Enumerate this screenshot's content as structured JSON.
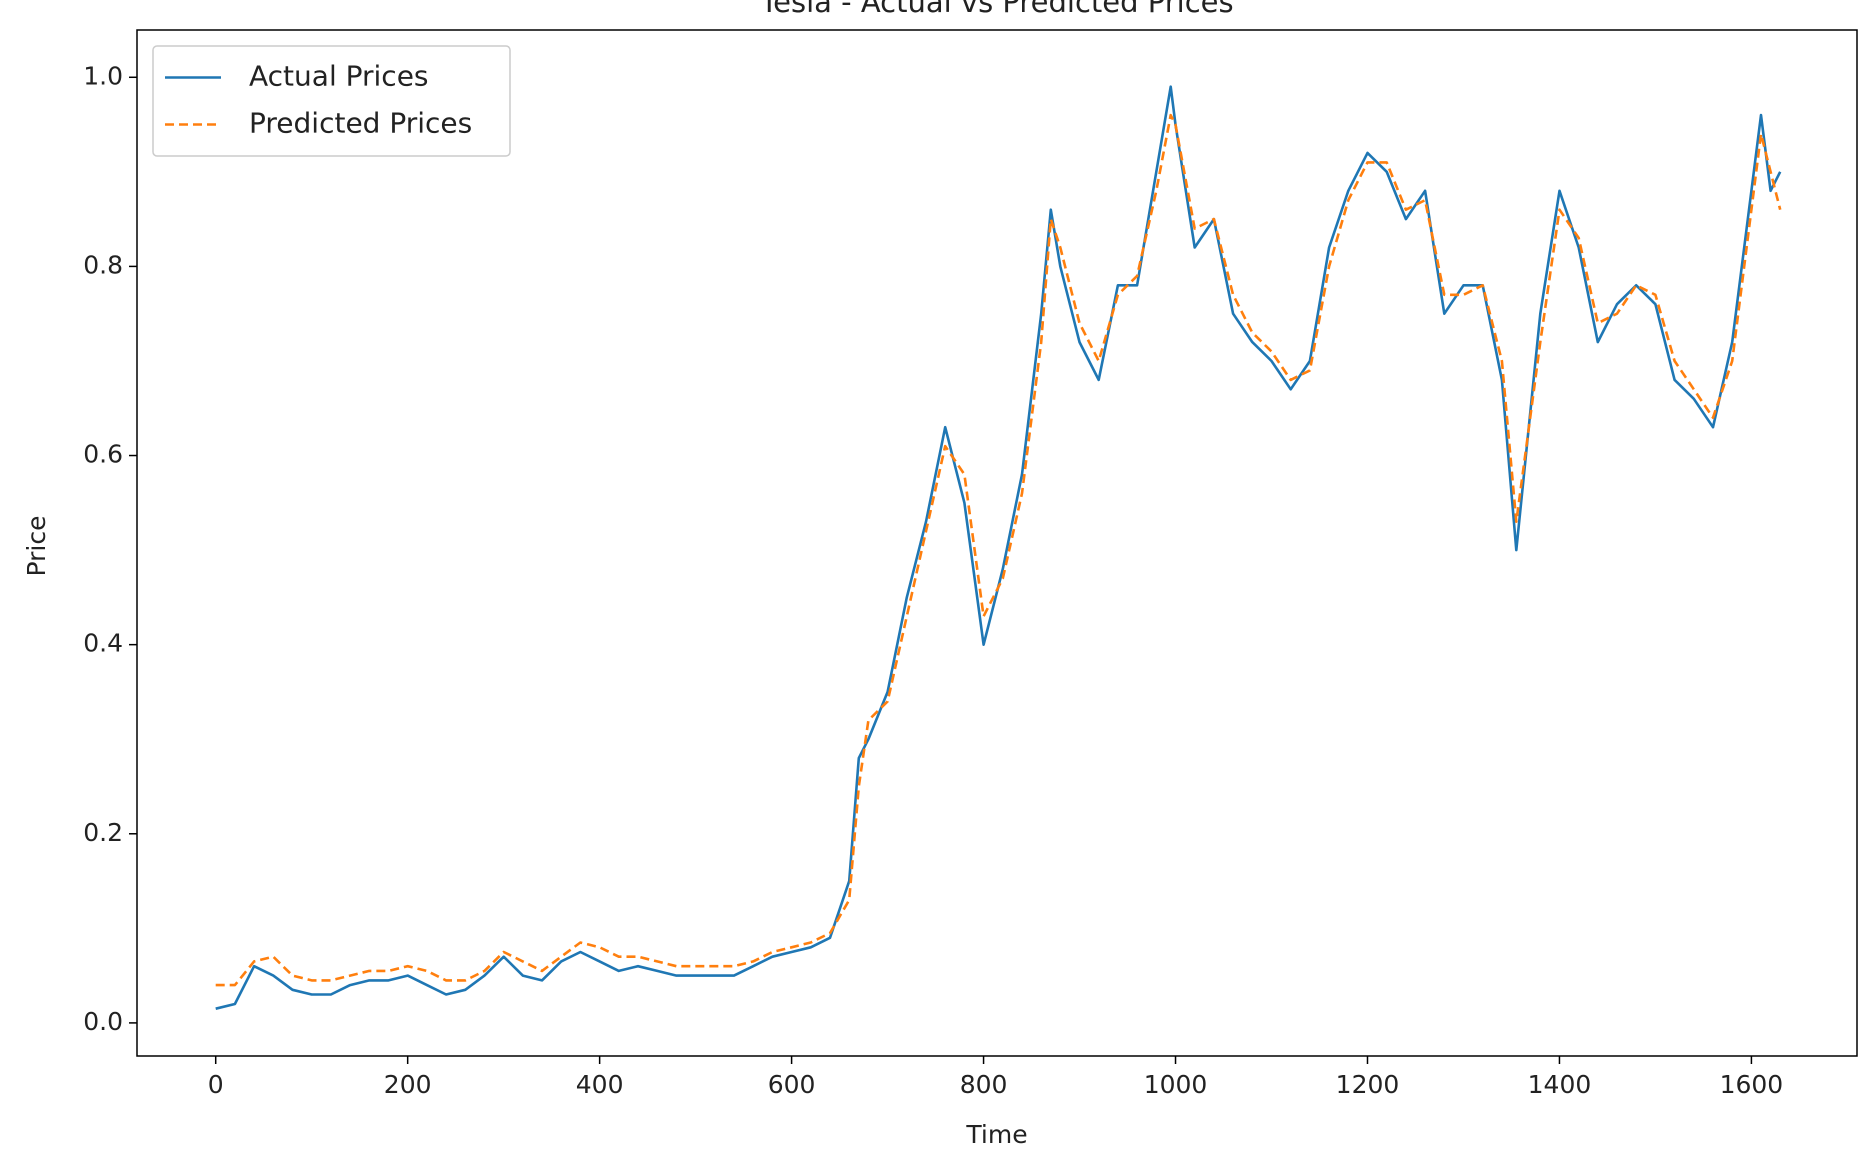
{
  "chart_data": {
    "type": "line",
    "title": "Tesla - Actual vs Predicted Prices",
    "x_label": "Time",
    "y_label": "Price",
    "x": [
      0,
      20,
      40,
      60,
      80,
      100,
      120,
      140,
      160,
      180,
      200,
      220,
      240,
      260,
      280,
      300,
      320,
      340,
      360,
      380,
      400,
      420,
      440,
      460,
      480,
      500,
      520,
      540,
      560,
      580,
      600,
      620,
      640,
      660,
      670,
      680,
      700,
      720,
      740,
      760,
      780,
      800,
      820,
      840,
      860,
      870,
      880,
      900,
      920,
      940,
      960,
      980,
      995,
      1000,
      1020,
      1040,
      1060,
      1080,
      1100,
      1120,
      1140,
      1160,
      1180,
      1200,
      1220,
      1240,
      1260,
      1280,
      1300,
      1320,
      1340,
      1355,
      1380,
      1400,
      1420,
      1440,
      1460,
      1480,
      1500,
      1520,
      1540,
      1560,
      1580,
      1600,
      1610,
      1620,
      1630
    ],
    "series": [
      {
        "name": "Actual Prices",
        "color": "#1f77b4",
        "dash": false,
        "values": [
          0.015,
          0.02,
          0.06,
          0.05,
          0.035,
          0.03,
          0.03,
          0.04,
          0.045,
          0.045,
          0.05,
          0.04,
          0.03,
          0.035,
          0.05,
          0.07,
          0.05,
          0.045,
          0.065,
          0.075,
          0.065,
          0.055,
          0.06,
          0.055,
          0.05,
          0.05,
          0.05,
          0.05,
          0.06,
          0.07,
          0.075,
          0.08,
          0.09,
          0.15,
          0.28,
          0.3,
          0.35,
          0.45,
          0.53,
          0.63,
          0.55,
          0.4,
          0.48,
          0.58,
          0.75,
          0.86,
          0.8,
          0.72,
          0.68,
          0.78,
          0.78,
          0.9,
          0.99,
          0.95,
          0.82,
          0.85,
          0.75,
          0.72,
          0.7,
          0.67,
          0.7,
          0.82,
          0.88,
          0.92,
          0.9,
          0.85,
          0.88,
          0.75,
          0.78,
          0.78,
          0.68,
          0.5,
          0.75,
          0.88,
          0.82,
          0.72,
          0.76,
          0.78,
          0.76,
          0.68,
          0.66,
          0.63,
          0.72,
          0.88,
          0.96,
          0.88,
          0.9
        ]
      },
      {
        "name": "Predicted Prices",
        "color": "#ff7f0e",
        "dash": true,
        "values": [
          0.04,
          0.04,
          0.065,
          0.07,
          0.05,
          0.045,
          0.045,
          0.05,
          0.055,
          0.055,
          0.06,
          0.055,
          0.045,
          0.045,
          0.055,
          0.075,
          0.065,
          0.055,
          0.07,
          0.085,
          0.08,
          0.07,
          0.07,
          0.065,
          0.06,
          0.06,
          0.06,
          0.06,
          0.065,
          0.075,
          0.08,
          0.085,
          0.095,
          0.13,
          0.25,
          0.32,
          0.34,
          0.43,
          0.52,
          0.61,
          0.58,
          0.43,
          0.47,
          0.56,
          0.72,
          0.85,
          0.82,
          0.74,
          0.7,
          0.77,
          0.79,
          0.88,
          0.96,
          0.95,
          0.84,
          0.85,
          0.77,
          0.73,
          0.71,
          0.68,
          0.69,
          0.8,
          0.87,
          0.91,
          0.91,
          0.86,
          0.87,
          0.77,
          0.77,
          0.78,
          0.7,
          0.53,
          0.72,
          0.86,
          0.83,
          0.74,
          0.75,
          0.78,
          0.77,
          0.7,
          0.67,
          0.64,
          0.7,
          0.86,
          0.94,
          0.9,
          0.86
        ]
      }
    ],
    "xlim": [
      -82,
      1710
    ],
    "ylim": [
      -0.035,
      1.05
    ],
    "xticks": [
      0,
      200,
      400,
      600,
      800,
      1000,
      1200,
      1400,
      1600
    ],
    "yticks": [
      {
        "value": 0,
        "label": "0.0"
      },
      0.2,
      0.4,
      0.6,
      0.8,
      {
        "value": 1,
        "label": "1.0"
      }
    ],
    "legend": "upper left",
    "grid": false
  }
}
